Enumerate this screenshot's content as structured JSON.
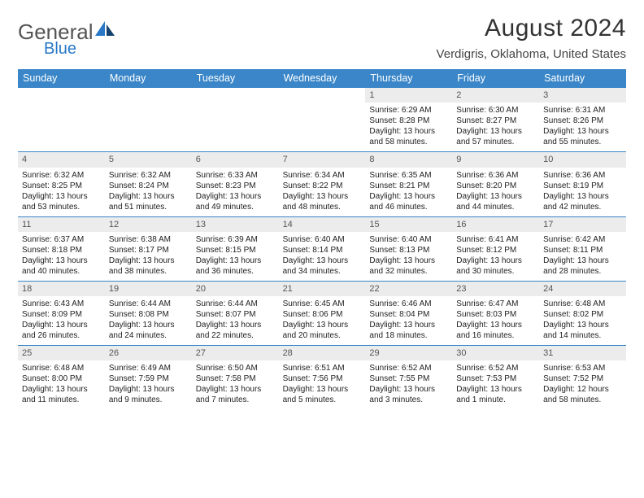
{
  "logo": {
    "word1": "General",
    "word2": "Blue"
  },
  "title": "August 2024",
  "location": "Verdigris, Oklahoma, United States",
  "colors": {
    "header_bg": "#3a86c8",
    "header_text": "#ffffff",
    "daynum_bg": "#ececec",
    "daynum_text": "#555555",
    "body_text": "#222222",
    "logo_blue": "#2878c7",
    "logo_grey": "#555555"
  },
  "fonts": {
    "title_size": 30,
    "location_size": 15,
    "weekday_size": 12.5,
    "cell_size": 10
  },
  "weekdays": [
    "Sunday",
    "Monday",
    "Tuesday",
    "Wednesday",
    "Thursday",
    "Friday",
    "Saturday"
  ],
  "weeks": [
    [
      null,
      null,
      null,
      null,
      {
        "n": "1",
        "sunrise": "6:29 AM",
        "sunset": "8:28 PM",
        "daylight": "13 hours and 58 minutes."
      },
      {
        "n": "2",
        "sunrise": "6:30 AM",
        "sunset": "8:27 PM",
        "daylight": "13 hours and 57 minutes."
      },
      {
        "n": "3",
        "sunrise": "6:31 AM",
        "sunset": "8:26 PM",
        "daylight": "13 hours and 55 minutes."
      }
    ],
    [
      {
        "n": "4",
        "sunrise": "6:32 AM",
        "sunset": "8:25 PM",
        "daylight": "13 hours and 53 minutes."
      },
      {
        "n": "5",
        "sunrise": "6:32 AM",
        "sunset": "8:24 PM",
        "daylight": "13 hours and 51 minutes."
      },
      {
        "n": "6",
        "sunrise": "6:33 AM",
        "sunset": "8:23 PM",
        "daylight": "13 hours and 49 minutes."
      },
      {
        "n": "7",
        "sunrise": "6:34 AM",
        "sunset": "8:22 PM",
        "daylight": "13 hours and 48 minutes."
      },
      {
        "n": "8",
        "sunrise": "6:35 AM",
        "sunset": "8:21 PM",
        "daylight": "13 hours and 46 minutes."
      },
      {
        "n": "9",
        "sunrise": "6:36 AM",
        "sunset": "8:20 PM",
        "daylight": "13 hours and 44 minutes."
      },
      {
        "n": "10",
        "sunrise": "6:36 AM",
        "sunset": "8:19 PM",
        "daylight": "13 hours and 42 minutes."
      }
    ],
    [
      {
        "n": "11",
        "sunrise": "6:37 AM",
        "sunset": "8:18 PM",
        "daylight": "13 hours and 40 minutes."
      },
      {
        "n": "12",
        "sunrise": "6:38 AM",
        "sunset": "8:17 PM",
        "daylight": "13 hours and 38 minutes."
      },
      {
        "n": "13",
        "sunrise": "6:39 AM",
        "sunset": "8:15 PM",
        "daylight": "13 hours and 36 minutes."
      },
      {
        "n": "14",
        "sunrise": "6:40 AM",
        "sunset": "8:14 PM",
        "daylight": "13 hours and 34 minutes."
      },
      {
        "n": "15",
        "sunrise": "6:40 AM",
        "sunset": "8:13 PM",
        "daylight": "13 hours and 32 minutes."
      },
      {
        "n": "16",
        "sunrise": "6:41 AM",
        "sunset": "8:12 PM",
        "daylight": "13 hours and 30 minutes."
      },
      {
        "n": "17",
        "sunrise": "6:42 AM",
        "sunset": "8:11 PM",
        "daylight": "13 hours and 28 minutes."
      }
    ],
    [
      {
        "n": "18",
        "sunrise": "6:43 AM",
        "sunset": "8:09 PM",
        "daylight": "13 hours and 26 minutes."
      },
      {
        "n": "19",
        "sunrise": "6:44 AM",
        "sunset": "8:08 PM",
        "daylight": "13 hours and 24 minutes."
      },
      {
        "n": "20",
        "sunrise": "6:44 AM",
        "sunset": "8:07 PM",
        "daylight": "13 hours and 22 minutes."
      },
      {
        "n": "21",
        "sunrise": "6:45 AM",
        "sunset": "8:06 PM",
        "daylight": "13 hours and 20 minutes."
      },
      {
        "n": "22",
        "sunrise": "6:46 AM",
        "sunset": "8:04 PM",
        "daylight": "13 hours and 18 minutes."
      },
      {
        "n": "23",
        "sunrise": "6:47 AM",
        "sunset": "8:03 PM",
        "daylight": "13 hours and 16 minutes."
      },
      {
        "n": "24",
        "sunrise": "6:48 AM",
        "sunset": "8:02 PM",
        "daylight": "13 hours and 14 minutes."
      }
    ],
    [
      {
        "n": "25",
        "sunrise": "6:48 AM",
        "sunset": "8:00 PM",
        "daylight": "13 hours and 11 minutes."
      },
      {
        "n": "26",
        "sunrise": "6:49 AM",
        "sunset": "7:59 PM",
        "daylight": "13 hours and 9 minutes."
      },
      {
        "n": "27",
        "sunrise": "6:50 AM",
        "sunset": "7:58 PM",
        "daylight": "13 hours and 7 minutes."
      },
      {
        "n": "28",
        "sunrise": "6:51 AM",
        "sunset": "7:56 PM",
        "daylight": "13 hours and 5 minutes."
      },
      {
        "n": "29",
        "sunrise": "6:52 AM",
        "sunset": "7:55 PM",
        "daylight": "13 hours and 3 minutes."
      },
      {
        "n": "30",
        "sunrise": "6:52 AM",
        "sunset": "7:53 PM",
        "daylight": "13 hours and 1 minute."
      },
      {
        "n": "31",
        "sunrise": "6:53 AM",
        "sunset": "7:52 PM",
        "daylight": "12 hours and 58 minutes."
      }
    ]
  ],
  "labels": {
    "sunrise": "Sunrise: ",
    "sunset": "Sunset: ",
    "daylight": "Daylight: "
  }
}
